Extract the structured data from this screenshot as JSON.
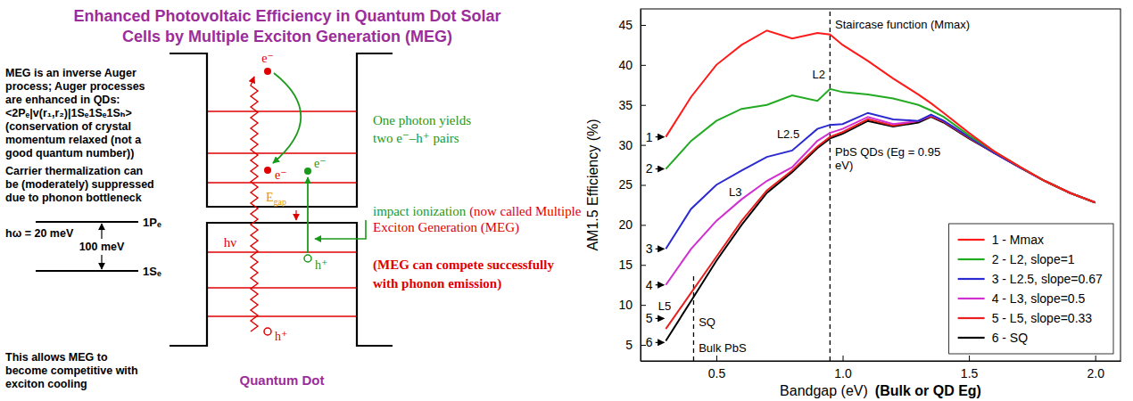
{
  "diagram": {
    "title": [
      "Enhanced Photovoltaic Efficiency in Quantum Dot Solar",
      "Cells by Multiple Exciton Generation (MEG)"
    ],
    "notes": [
      [
        "MEG is an inverse Auger",
        "process; Auger processes",
        "are enhanced in QDs:",
        "<2Pₑ|v(r₁,r₂)|1Sₑ1Sₑ1Sₕ>",
        "(conservation of crystal",
        "momentum relaxed (not a",
        "good quantum number))"
      ],
      [
        "Carrier thermalization can",
        "be (moderately) suppressed",
        "due to phonon bottleneck"
      ],
      [
        "This allows MEG to",
        "become competitive with",
        "exciton cooling"
      ]
    ],
    "levels": {
      "upper": "1Pₑ",
      "lower": "1Sₑ",
      "phonon": "hω = 20 meV",
      "spacing": "100 meV"
    },
    "quantum_dot": {
      "caption": "Quantum Dot",
      "photon": "hν",
      "gap": "E",
      "gap_sub": "gap",
      "electron": "e⁻",
      "hole": "h⁺"
    },
    "callouts": {
      "yield": [
        "One photon yields",
        "two e⁻–h⁺ pairs"
      ],
      "impact": "impact ionization",
      "impact_note": [
        "(now called Multiple",
        "Exciton Generation (MEG)"
      ],
      "compete": [
        "(MEG can compete successfully",
        "with phonon emission)"
      ]
    }
  },
  "chart_data": {
    "type": "line",
    "xlabel": "Bandgap (eV)",
    "xlabel_note": "(Bulk or QD Eg)",
    "ylabel": "AM1.5 Efficiency (%)",
    "xlim": [
      0.2,
      2.1
    ],
    "ylim": [
      3,
      47
    ],
    "xticks": [
      0.5,
      {
        "value": 1,
        "label": "1.0"
      },
      1.5,
      {
        "value": 2,
        "label": "2.0"
      }
    ],
    "yticks": [
      5,
      10,
      15,
      20,
      25,
      30,
      35,
      40,
      45
    ],
    "grid": false,
    "legend": "lower right",
    "x": [
      0.3,
      0.4,
      0.5,
      0.6,
      0.7,
      0.8,
      0.9,
      0.95,
      1.0,
      1.1,
      1.2,
      1.3,
      1.35,
      1.4,
      1.5,
      1.6,
      1.7,
      1.8,
      1.9,
      2.0
    ],
    "series": [
      {
        "name": "1 - Mmax",
        "color": "#ff1a1a",
        "values": [
          31,
          36,
          40,
          42.5,
          44.3,
          43.3,
          44,
          43.8,
          42.5,
          40.5,
          38.3,
          36.3,
          35.2,
          34,
          31.5,
          29.2,
          27.3,
          25.5,
          24,
          22.8
        ]
      },
      {
        "name": "2 - L2, slope=1",
        "color": "#22aa22",
        "values": [
          27,
          30.5,
          33,
          34.5,
          35,
          36.2,
          35.5,
          37,
          36.6,
          36.3,
          35.8,
          35,
          34.3,
          33.5,
          31.2,
          29.2,
          27.3,
          25.5,
          24,
          22.8
        ]
      },
      {
        "name": "3 - L2.5, slope=0.67",
        "color": "#2a2ad0",
        "values": [
          17,
          22,
          25,
          26.8,
          28.5,
          29.3,
          32,
          32.5,
          32.6,
          34,
          33.2,
          33,
          33.8,
          33,
          31,
          29,
          27.2,
          25.5,
          24,
          22.8
        ]
      },
      {
        "name": "4 - L3, slope=0.5",
        "color": "#d030d0",
        "values": [
          12.5,
          17,
          20.5,
          23.2,
          25.5,
          27.2,
          30.5,
          31.5,
          32,
          33.5,
          32.6,
          33,
          33.7,
          33,
          31,
          29,
          27.2,
          25.5,
          24,
          22.8
        ]
      },
      {
        "name": "5 - L5, slope=0.33",
        "color": "#e82020",
        "values": [
          7,
          11.5,
          16,
          20.5,
          24.3,
          26.8,
          29.8,
          31,
          31.6,
          33.2,
          32.4,
          33,
          33.6,
          32.9,
          30.9,
          29,
          27.2,
          25.5,
          24,
          22.8
        ]
      },
      {
        "name": "6 - SQ",
        "color": "#000000",
        "values": [
          5.5,
          10.5,
          15.5,
          20,
          24,
          26.6,
          29.6,
          30.8,
          31.4,
          33,
          32.3,
          32.8,
          33.5,
          32.8,
          30.8,
          29,
          27.2,
          25.5,
          24,
          22.8
        ]
      }
    ],
    "vlines": [
      {
        "x": 0.95,
        "y": [
          3,
          47
        ]
      },
      {
        "x": 0.41,
        "y": [
          3,
          14
        ]
      }
    ],
    "curve_numbers": [
      {
        "text": "1",
        "x": 0.22,
        "y": 31
      },
      {
        "text": "2",
        "x": 0.22,
        "y": 27
      },
      {
        "text": "3",
        "x": 0.22,
        "y": 17
      },
      {
        "text": "4",
        "x": 0.22,
        "y": 12.5
      },
      {
        "text": "5",
        "x": 0.22,
        "y": 8.3
      },
      {
        "text": "6",
        "x": 0.22,
        "y": 5.3
      }
    ],
    "annotations": [
      {
        "text": "Staircase function (Mmax)",
        "x": 0.97,
        "y": 44.6
      },
      {
        "text": "PbS QDs (Eg = 0.95",
        "x": 0.97,
        "y": 28.6
      },
      {
        "text": "eV)",
        "x": 0.97,
        "y": 26.9
      },
      {
        "text": "L2",
        "x": 0.88,
        "y": 38.3
      },
      {
        "text": "L2.5",
        "x": 0.74,
        "y": 30.8
      },
      {
        "text": "L3",
        "x": 0.55,
        "y": 23.6
      },
      {
        "text": "L5",
        "x": 0.27,
        "y": 9.3
      },
      {
        "text": "SQ",
        "x": 0.43,
        "y": 7.4
      },
      {
        "text": "Bulk PbS",
        "x": 0.43,
        "y": 4.1
      }
    ]
  }
}
